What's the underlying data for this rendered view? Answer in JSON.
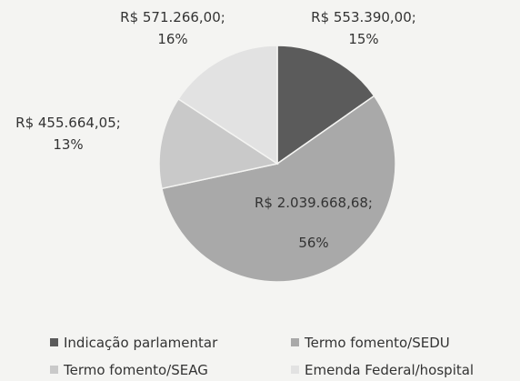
{
  "chart_data": {
    "type": "pie",
    "categories": [
      "Indicação parlamentar",
      "Termo fomento/SEDU",
      "Termo fomento/SEAG",
      "Emenda Federal/hospital"
    ],
    "values": [
      553390.0,
      2039668.68,
      455664.05,
      571266.0
    ],
    "value_labels": [
      "R$ 553.390,00;",
      "R$ 2.039.668,68;",
      "R$ 455.664,05;",
      "R$ 571.266,00;"
    ],
    "percent_labels": [
      "15%",
      "56%",
      "13%",
      "16%"
    ],
    "colors": [
      "#5b5b5b",
      "#a9a9a9",
      "#c9c9c9",
      "#e2e2e2"
    ],
    "legend": "bottom"
  }
}
